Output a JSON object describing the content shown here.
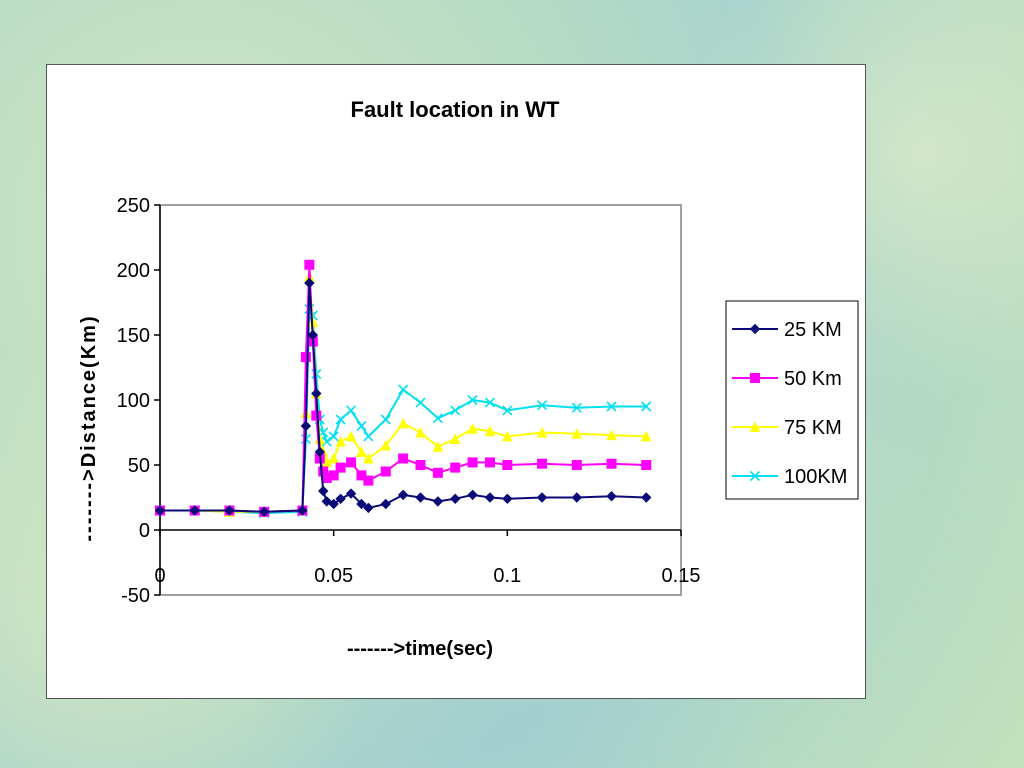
{
  "chart_data": {
    "type": "line",
    "title": "Fault location in WT",
    "xlabel": "------->time(sec)",
    "ylabel": "------->Distance(Km)",
    "xlim": [
      0,
      0.15
    ],
    "ylim": [
      -50,
      250
    ],
    "xticks": [
      0,
      0.05,
      0.1,
      0.15
    ],
    "xtick_labels": [
      "0",
      "0.05",
      "0.1",
      "0.15"
    ],
    "yticks": [
      -50,
      0,
      50,
      100,
      150,
      200,
      250
    ],
    "ytick_labels": [
      "-50",
      "0",
      "50",
      "100",
      "150",
      "200",
      "250"
    ],
    "grid": false,
    "legend_position": "right",
    "series": [
      {
        "name": "25 KM",
        "color": "#0a0a78",
        "marker": "diamond",
        "x": [
          0,
          0.01,
          0.02,
          0.03,
          0.041,
          0.042,
          0.043,
          0.044,
          0.045,
          0.046,
          0.047,
          0.048,
          0.05,
          0.052,
          0.055,
          0.058,
          0.06,
          0.065,
          0.07,
          0.075,
          0.08,
          0.085,
          0.09,
          0.095,
          0.1,
          0.11,
          0.12,
          0.13,
          0.14
        ],
        "y": [
          15,
          15,
          15,
          14,
          15,
          80,
          190,
          150,
          105,
          60,
          30,
          22,
          20,
          24,
          28,
          20,
          17,
          20,
          27,
          25,
          22,
          24,
          27,
          25,
          24,
          25,
          25,
          26,
          25
        ]
      },
      {
        "name": "50 Km",
        "color": "#ff00ff",
        "marker": "square",
        "x": [
          0,
          0.01,
          0.02,
          0.03,
          0.041,
          0.042,
          0.043,
          0.044,
          0.045,
          0.046,
          0.047,
          0.048,
          0.05,
          0.052,
          0.055,
          0.058,
          0.06,
          0.065,
          0.07,
          0.075,
          0.08,
          0.085,
          0.09,
          0.095,
          0.1,
          0.11,
          0.12,
          0.13,
          0.14
        ],
        "y": [
          15,
          15,
          15,
          14,
          15,
          133,
          204,
          145,
          88,
          55,
          45,
          40,
          42,
          48,
          52,
          42,
          38,
          45,
          55,
          50,
          44,
          48,
          52,
          52,
          50,
          51,
          50,
          51,
          50
        ]
      },
      {
        "name": "75 KM",
        "color": "#ffff00",
        "marker": "triangle",
        "x": [
          0,
          0.01,
          0.02,
          0.03,
          0.041,
          0.042,
          0.043,
          0.044,
          0.045,
          0.046,
          0.047,
          0.048,
          0.05,
          0.052,
          0.055,
          0.058,
          0.06,
          0.065,
          0.07,
          0.075,
          0.08,
          0.085,
          0.09,
          0.095,
          0.1,
          0.11,
          0.12,
          0.13,
          0.14
        ],
        "y": [
          15,
          15,
          14,
          14,
          15,
          90,
          195,
          160,
          105,
          70,
          60,
          52,
          55,
          68,
          72,
          60,
          55,
          65,
          82,
          75,
          64,
          70,
          78,
          76,
          72,
          75,
          74,
          73,
          72
        ]
      },
      {
        "name": "100KM",
        "color": "#00e0f0",
        "marker": "x",
        "x": [
          0,
          0.01,
          0.02,
          0.03,
          0.041,
          0.042,
          0.043,
          0.044,
          0.045,
          0.046,
          0.047,
          0.048,
          0.05,
          0.052,
          0.055,
          0.058,
          0.06,
          0.065,
          0.07,
          0.075,
          0.08,
          0.085,
          0.09,
          0.095,
          0.1,
          0.11,
          0.12,
          0.13,
          0.14
        ],
        "y": [
          15,
          15,
          14,
          13,
          14,
          70,
          170,
          165,
          120,
          85,
          75,
          68,
          72,
          85,
          92,
          80,
          72,
          85,
          108,
          98,
          86,
          92,
          100,
          98,
          92,
          96,
          94,
          95,
          95
        ]
      }
    ]
  }
}
